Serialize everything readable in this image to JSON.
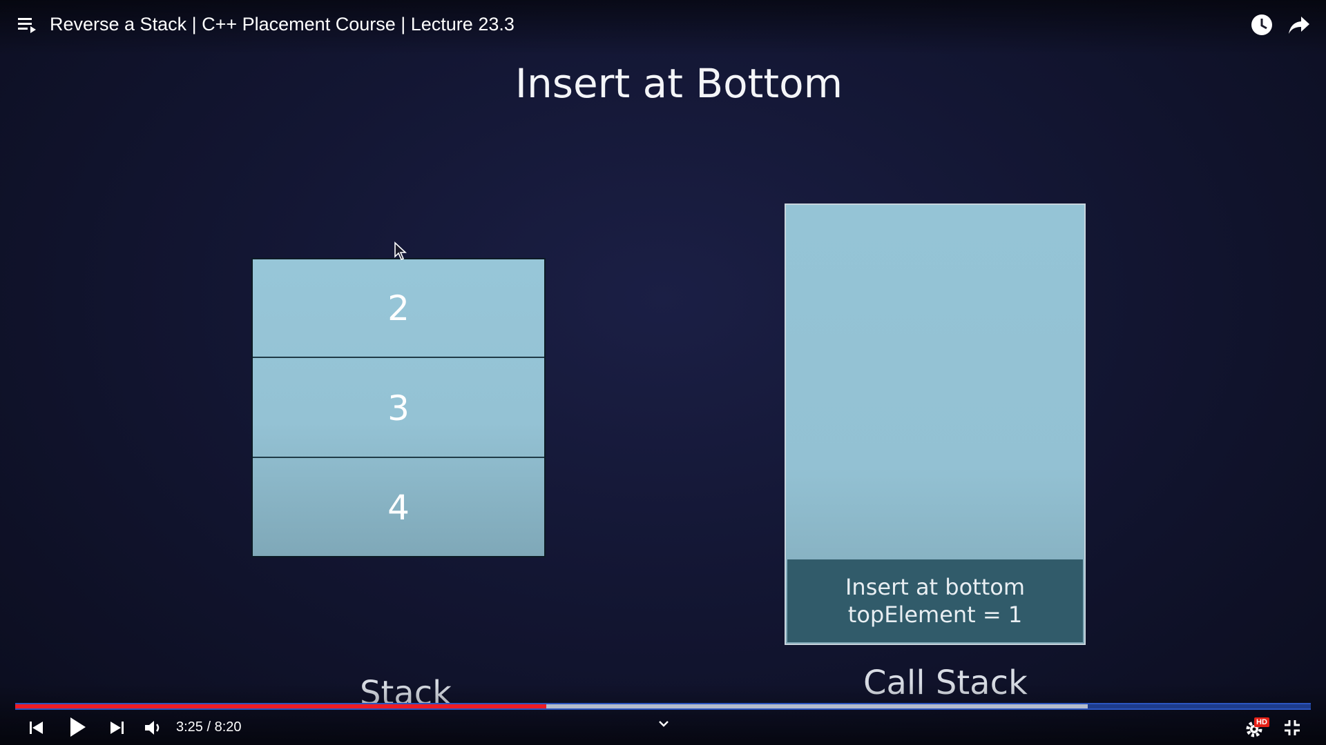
{
  "player": {
    "title": "Reverse a Stack | C++ Placement Course | Lecture 23.3",
    "time": "3:25 / 8:20",
    "progress": {
      "played_fraction": 0.41,
      "buffered_fraction": 0.828
    },
    "hd_badge": "HD",
    "colors": {
      "played": "#ee1c24",
      "buffered": "#b4bccc",
      "track": "#1e3c8c"
    },
    "icons": [
      "playlist-icon",
      "watch-later-icon",
      "share-icon",
      "previous-icon",
      "play-icon",
      "next-icon",
      "volume-icon",
      "chevron-down-icon",
      "settings-icon",
      "exit-fullscreen-icon"
    ]
  },
  "slide": {
    "title": "Insert at Bottom",
    "stack": {
      "label": "Stack",
      "items": [
        "2",
        "3",
        "4"
      ]
    },
    "call_stack": {
      "label": "Call Stack",
      "frame_line1": "Insert at bottom",
      "frame_line2": "topElement = 1"
    }
  }
}
